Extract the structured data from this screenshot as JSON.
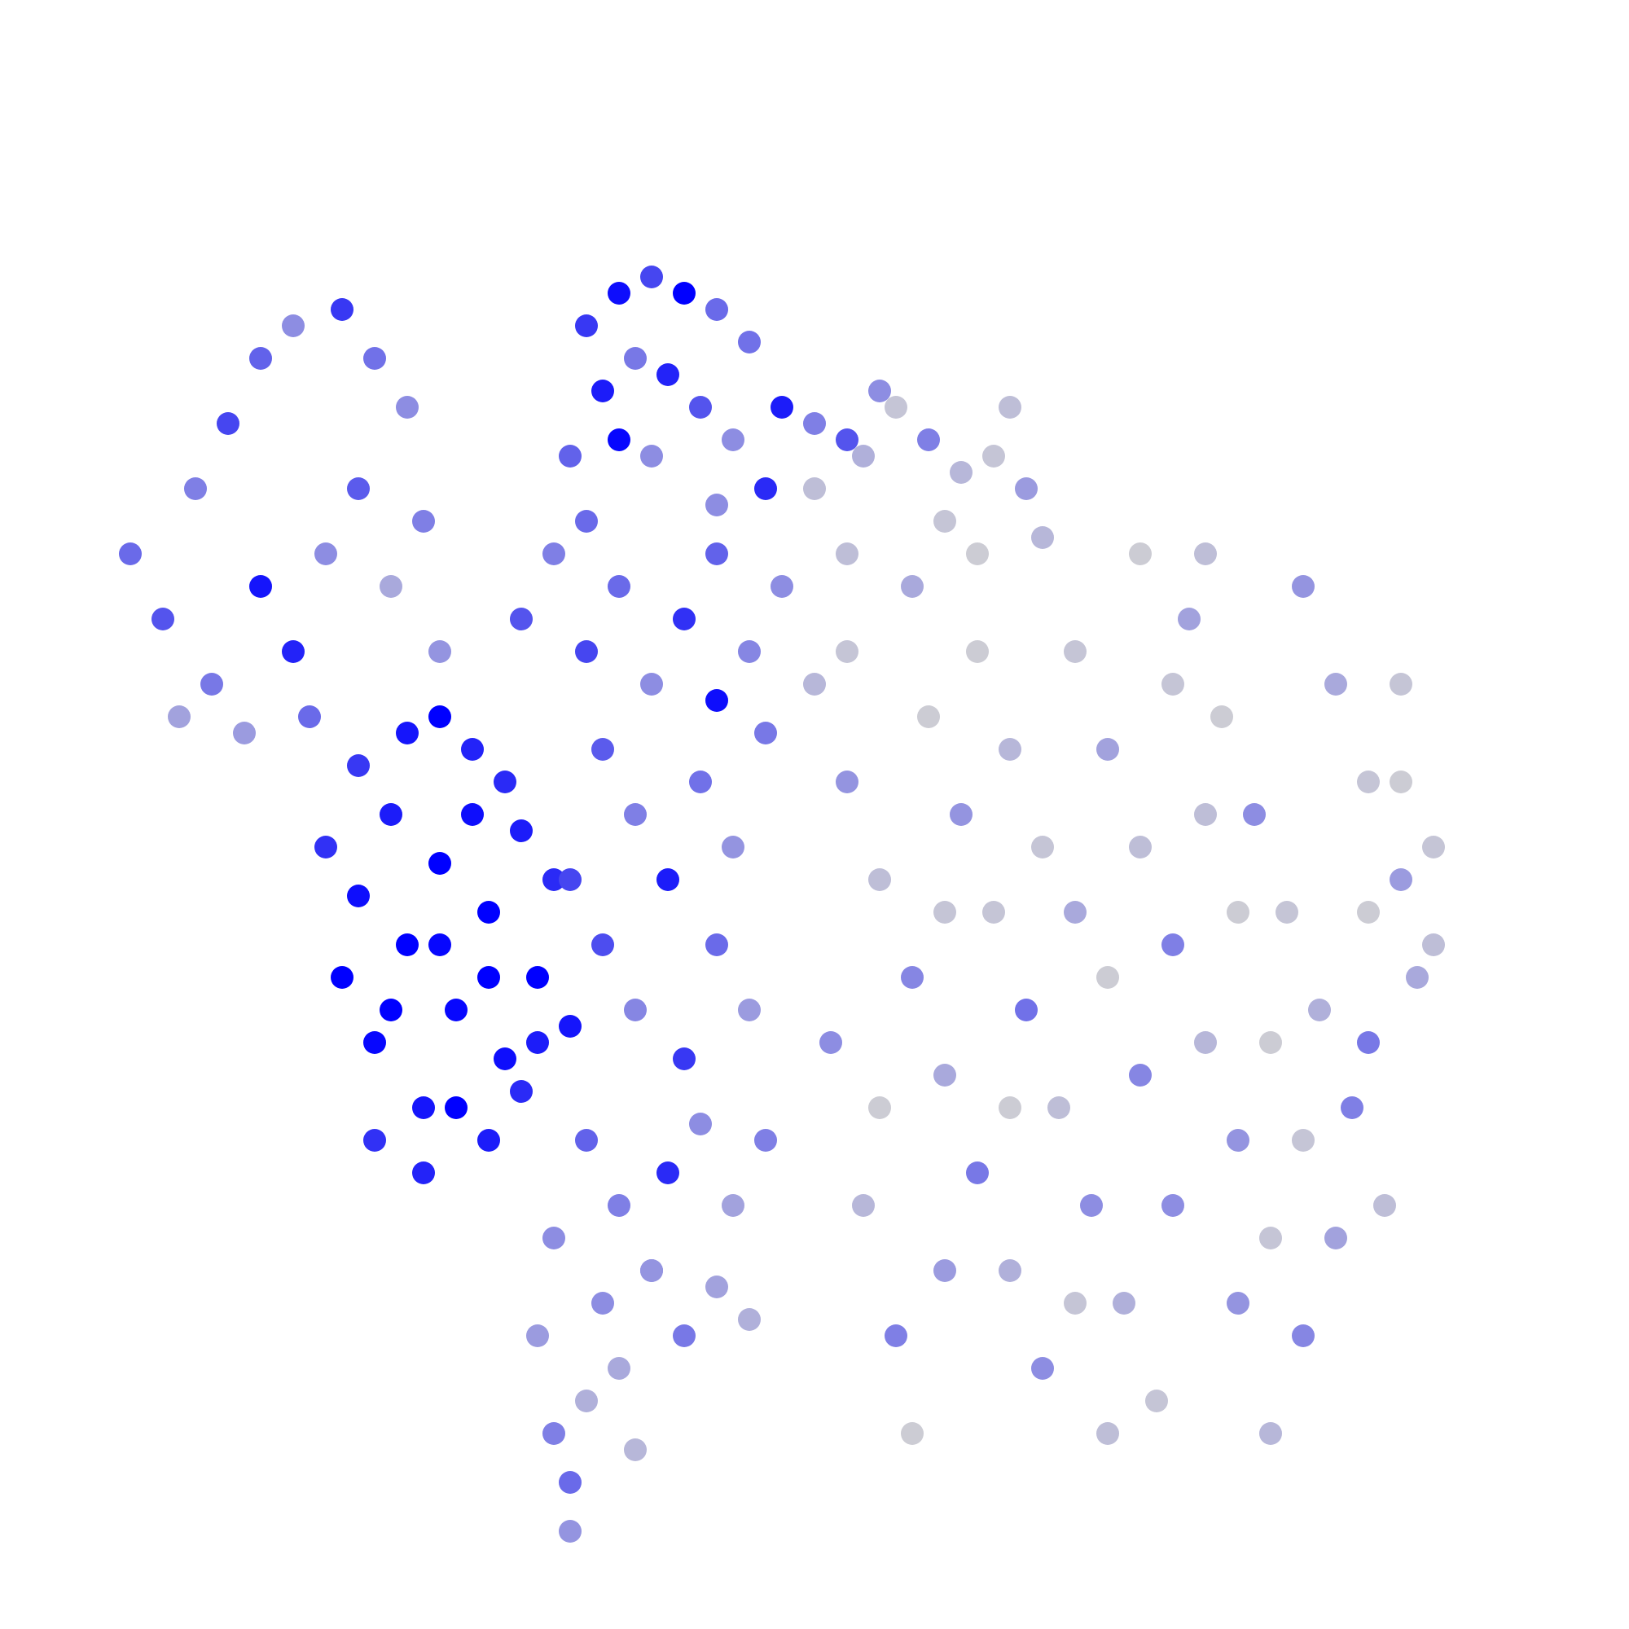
{
  "chart_data": {
    "type": "scatter",
    "xlim": [
      0,
      100
    ],
    "ylim": [
      0,
      100
    ],
    "clim": [
      0,
      3
    ],
    "color_low": "#d3d3d3",
    "color_high": "#0000ff",
    "x": [
      8,
      10,
      12,
      14,
      16,
      18,
      21,
      23,
      25,
      13,
      15,
      18,
      20,
      22,
      24,
      26,
      27,
      19,
      11,
      16,
      36,
      38,
      40,
      42,
      44,
      37,
      39,
      41,
      43,
      45,
      35,
      38,
      40,
      46,
      48,
      50,
      52,
      47,
      44,
      36,
      21,
      22,
      23,
      24,
      25,
      26,
      27,
      28,
      29,
      30,
      31,
      32,
      33,
      34,
      35,
      23,
      26,
      28,
      30,
      32,
      22,
      25,
      27,
      29,
      31,
      24,
      27,
      30,
      33,
      20,
      32,
      34,
      36,
      38,
      40,
      42,
      44,
      46,
      37,
      39,
      41,
      43,
      45,
      47,
      37,
      39,
      42,
      44,
      46,
      36,
      38,
      41,
      43,
      45,
      40,
      34,
      47,
      35,
      44,
      48,
      33,
      34,
      35,
      36,
      37,
      38,
      40,
      39,
      42,
      44,
      35,
      46,
      50,
      53,
      55,
      57,
      59,
      61,
      63,
      52,
      56,
      60,
      54,
      58,
      62,
      64,
      50,
      52,
      54,
      56,
      58,
      60,
      62,
      64,
      66,
      68,
      70,
      72,
      74,
      76,
      78,
      80,
      82,
      84,
      86,
      88,
      51,
      53,
      55,
      57,
      59,
      61,
      63,
      65,
      67,
      69,
      71,
      73,
      75,
      77,
      79,
      81,
      83,
      85,
      87,
      76,
      66,
      70,
      62,
      58,
      74,
      80,
      86,
      84,
      72,
      78,
      60,
      64,
      68,
      72,
      76,
      80,
      82,
      54,
      58,
      62,
      66,
      70,
      74,
      78,
      86,
      88,
      56,
      68,
      84,
      52
    ],
    "y": [
      66,
      62,
      70,
      74,
      78,
      80,
      81,
      78,
      75,
      58,
      55,
      60,
      66,
      70,
      64,
      68,
      60,
      56,
      56,
      64,
      80,
      82,
      83,
      82,
      81,
      76,
      78,
      77,
      75,
      73,
      72,
      73,
      72,
      79,
      75,
      74,
      73,
      70,
      69,
      68,
      40,
      45,
      36,
      50,
      42,
      32,
      47,
      38,
      54,
      44,
      35,
      49,
      40,
      46,
      37,
      30,
      28,
      32,
      30,
      33,
      53,
      55,
      56,
      50,
      52,
      38,
      42,
      40,
      36,
      48,
      62,
      66,
      60,
      64,
      58,
      62,
      66,
      60,
      54,
      50,
      46,
      52,
      48,
      55,
      42,
      38,
      35,
      42,
      38,
      30,
      26,
      28,
      31,
      26,
      22,
      24,
      30,
      46,
      57,
      64,
      18,
      12,
      9,
      14,
      20,
      16,
      22,
      11,
      18,
      21,
      6,
      19,
      70,
      72,
      75,
      73,
      71,
      72,
      70,
      66,
      64,
      66,
      76,
      68,
      75,
      67,
      58,
      52,
      46,
      40,
      34,
      28,
      22,
      16,
      60,
      54,
      48,
      42,
      36,
      30,
      24,
      18,
      58,
      52,
      46,
      42,
      36,
      26,
      18,
      56,
      50,
      44,
      38,
      32,
      26,
      20,
      14,
      62,
      56,
      50,
      44,
      38,
      32,
      26,
      40,
      20,
      44,
      34,
      54,
      22,
      66,
      64,
      58,
      36,
      26,
      12,
      60,
      48,
      40,
      58,
      44,
      30,
      24,
      32,
      44,
      32,
      20,
      66,
      50,
      36,
      52,
      48,
      12,
      12,
      44,
      60
    ],
    "values": [
      1.5,
      1.8,
      1.2,
      2,
      1.6,
      1,
      2.2,
      1.4,
      1,
      1.3,
      0.8,
      2.5,
      1,
      1.7,
      0.6,
      1.2,
      0.9,
      1.5,
      0.7,
      2.7,
      2.2,
      2.8,
      2,
      3,
      1.5,
      2.6,
      1.3,
      2.5,
      1.8,
      1,
      1.6,
      2.9,
      1,
      1.4,
      2.6,
      1.2,
      1.8,
      2.4,
      1,
      1.5,
      3,
      2.8,
      2.9,
      2.6,
      3,
      2.7,
      3,
      2.9,
      2.5,
      3,
      2.8,
      2.6,
      3,
      2.4,
      2.7,
      2.3,
      2.5,
      3,
      2.6,
      2.4,
      2.2,
      2.7,
      3,
      2.8,
      2.4,
      3,
      2.9,
      3,
      2.6,
      2.3,
      1.8,
      1.2,
      2,
      1.5,
      1,
      2.3,
      1.6,
      1.1,
      1.7,
      1.2,
      2.6,
      1.4,
      0.9,
      1.3,
      1.9,
      1.1,
      2.2,
      1.5,
      0.8,
      1.6,
      1.2,
      2.4,
      1,
      0.7,
      1.3,
      1,
      1.2,
      2,
      2.8,
      1,
      0.8,
      1.2,
      1.5,
      0.5,
      1,
      0.6,
      0.9,
      0.4,
      1.3,
      0.7,
      0.9,
      0.5,
      0.3,
      0.5,
      0.2,
      1.2,
      0.4,
      0.2,
      0.8,
      0.3,
      0.6,
      0.1,
      1,
      0.2,
      0.3,
      0.4,
      0.4,
      0.9,
      0.3,
      1.1,
      0.6,
      1.3,
      0.5,
      1,
      0.2,
      0.7,
      0.3,
      1.2,
      0.4,
      0.9,
      0.2,
      1.1,
      0.6,
      0.2,
      0.8,
      0.3,
      1,
      0.4,
      1.2,
      0.1,
      0.9,
      0.2,
      1.4,
      0.3,
      1,
      0.5,
      0.2,
      0.7,
      0.1,
      1,
      0.2,
      0.5,
      1.2,
      0.3,
      0.6,
      0.9,
      0.6,
      1.1,
      0.4,
      0.8,
      0.3,
      0.9,
      0.2,
      1.3,
      1,
      0.4,
      0.1,
      0.2,
      0.1,
      0.2,
      0.1,
      0.2,
      0.7,
      0.1,
      0.2,
      0.1,
      0.2,
      0.1,
      0.3,
      0.1,
      0.1,
      0.2,
      0.1,
      0.3,
      0.1,
      0.2
    ]
  }
}
